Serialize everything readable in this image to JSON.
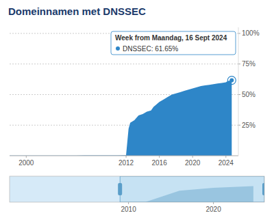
{
  "chart_data": [
    {
      "type": "area",
      "title": "Domeinnamen met DNSSEC",
      "title_color": "#1a3a6b",
      "color": "#2e86c8",
      "x": [
        1998,
        1999,
        2000,
        2001,
        2002,
        2003,
        2004,
        2005,
        2006,
        2007,
        2008,
        2009,
        2010,
        2011,
        2012,
        2012.3,
        2012.5,
        2013,
        2013.5,
        2014,
        2014.5,
        2015,
        2015.3,
        2015.5,
        2016,
        2016.5,
        2017,
        2017.5,
        2018,
        2018.5,
        2019,
        2019.5,
        2020,
        2020.5,
        2021,
        2021.5,
        2022,
        2022.5,
        2023,
        2023.5,
        2024,
        2024.2,
        2024.5,
        2024.7
      ],
      "values": [
        0.001,
        0.001,
        0.002,
        0.002,
        0.002,
        0.002,
        0.002,
        0.002,
        0.002,
        0.003,
        0.003,
        0.003,
        0.003,
        0.003,
        0.004,
        0.22,
        0.27,
        0.29,
        0.33,
        0.34,
        0.36,
        0.37,
        0.4,
        0.41,
        0.44,
        0.46,
        0.48,
        0.5,
        0.51,
        0.52,
        0.53,
        0.54,
        0.55,
        0.56,
        0.57,
        0.575,
        0.58,
        0.585,
        0.59,
        0.595,
        0.6,
        0.61,
        0.615,
        0.6165
      ],
      "xlim": [
        1998,
        2025.5
      ],
      "ylim": [
        0,
        1.05
      ],
      "xticks": [
        2000,
        2012,
        2016,
        2020,
        2024
      ],
      "yticks": [
        {
          "value": 0.25,
          "label": "25%"
        },
        {
          "value": 0.5,
          "label": "50%"
        },
        {
          "value": 0.75,
          "label": "75%"
        },
        {
          "value": 1.0,
          "label": "100%"
        }
      ],
      "grid": true,
      "highlight": {
        "x": 2024.7,
        "y": 0.6165
      },
      "annotations": [
        "Week from Maandag, 16 Sept 2024",
        "DNSSEC: 61.65%"
      ]
    },
    {
      "type": "area",
      "color": "#7fb3d3",
      "x": [
        1998,
        2008,
        2012,
        2016,
        2020,
        2024.7
      ],
      "values": [
        0.001,
        0.002,
        0.004,
        0.44,
        0.55,
        0.6165
      ],
      "xlim": [
        1996,
        2026
      ],
      "ylim": [
        0,
        1
      ],
      "xticks": [
        2010,
        2020
      ],
      "tick_labels": "x",
      "selection": [
        2009,
        2026
      ]
    }
  ]
}
